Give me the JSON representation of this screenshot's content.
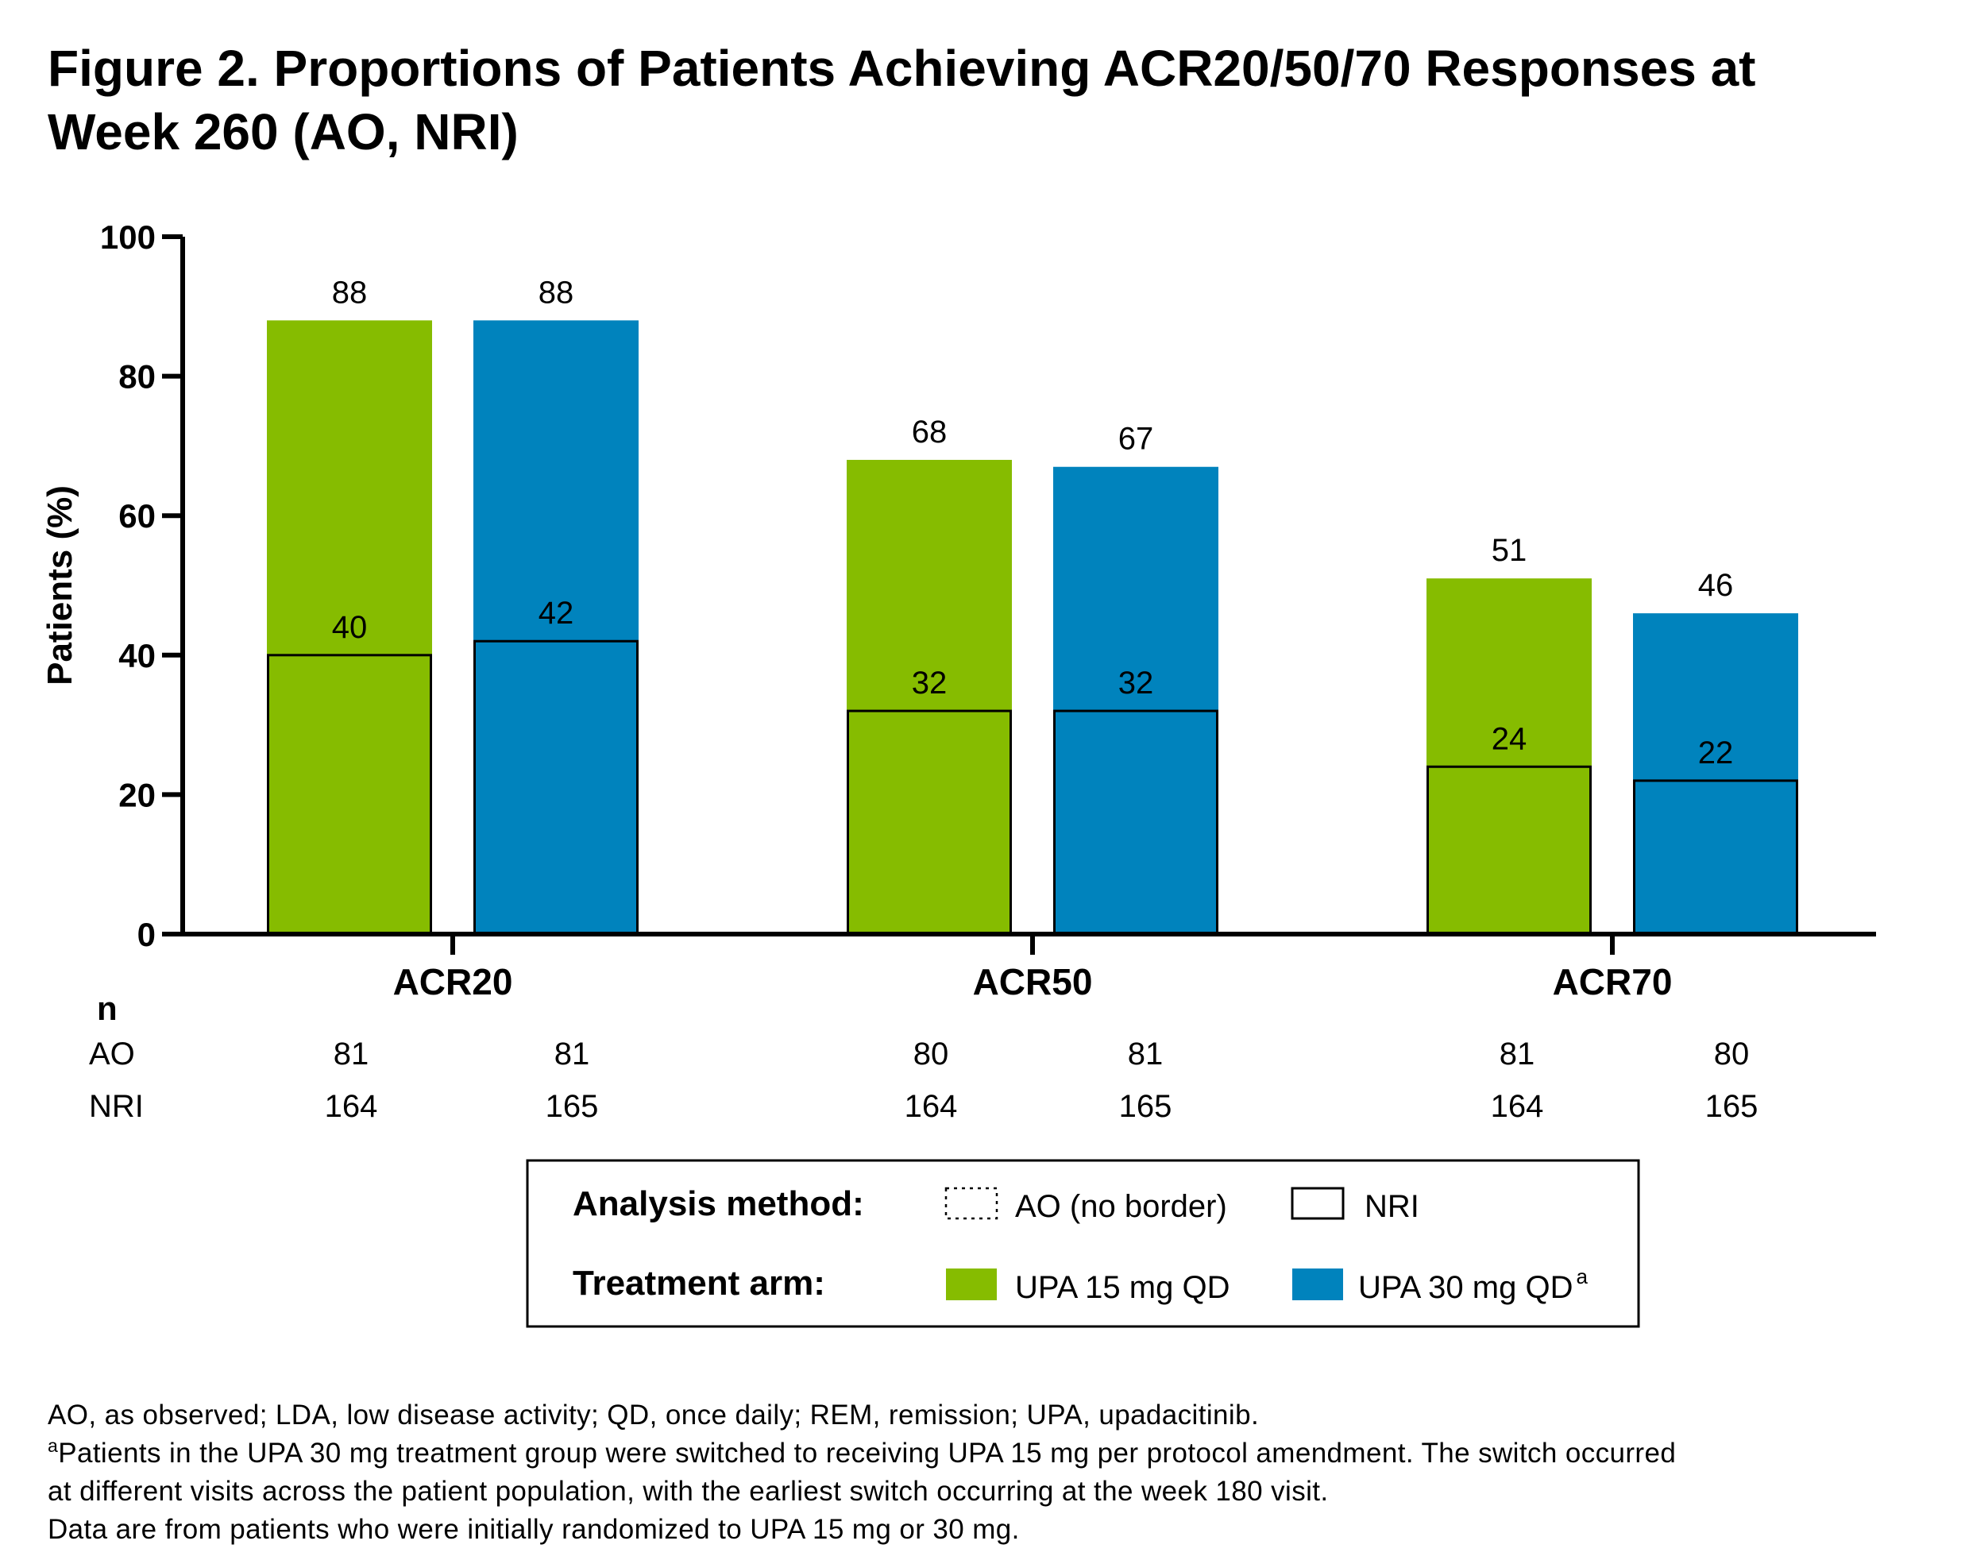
{
  "title": "Figure 2. Proportions of Patients Achieving ACR20/50/70 Responses at Week 260 (AO, NRI)",
  "colors": {
    "upa15": "#86BC00",
    "upa30": "#0083BD",
    "axis": "#000000"
  },
  "chart_data": {
    "type": "bar",
    "title": "Figure 2. Proportions of Patients Achieving ACR20/50/70 Responses at Week 260 (AO, NRI)",
    "xlabel": "",
    "ylabel": "Patients (%)",
    "ylim": [
      0,
      100
    ],
    "yticks": [
      0,
      20,
      40,
      60,
      80,
      100
    ],
    "categories": [
      "ACR20",
      "ACR50",
      "ACR70"
    ],
    "series": [
      {
        "name": "UPA 15 mg QD",
        "ao": [
          88,
          68,
          51
        ],
        "nri": [
          40,
          32,
          24
        ]
      },
      {
        "name": "UPA 30 mg QD",
        "ao": [
          88,
          67,
          46
        ],
        "nri": [
          42,
          32,
          22
        ]
      }
    ],
    "n_table": {
      "header": "n",
      "rows": [
        {
          "label": "AO",
          "values": [
            "81",
            "81",
            "80",
            "81",
            "81",
            "80"
          ]
        },
        {
          "label": "NRI",
          "values": [
            "164",
            "165",
            "164",
            "165",
            "164",
            "165"
          ]
        }
      ]
    },
    "legend": {
      "placement": "bottom",
      "method_label": "Analysis method:",
      "arm_label": "Treatment arm:",
      "ao_label": "AO (no border)",
      "nri_label": "NRI",
      "upa15_label": "UPA 15 mg QD",
      "upa30_label": "UPA 30 mg QD",
      "upa30_sup": "a"
    },
    "grid": false
  },
  "footnotes": {
    "abbrev": "AO, as observed; LDA, low disease activity; QD, once daily; REM, remission; UPA, upadacitinib.",
    "a_marker": "a",
    "a_line1": "Patients in the UPA 30 mg treatment group were switched to receiving UPA 15 mg per protocol amendment. The switch occurred",
    "a_line2": "at different visits across the patient population, with the earliest switch occurring at the week 180 visit.",
    "data_note": "Data are from patients who were initially randomized to UPA 15 mg or 30 mg."
  }
}
